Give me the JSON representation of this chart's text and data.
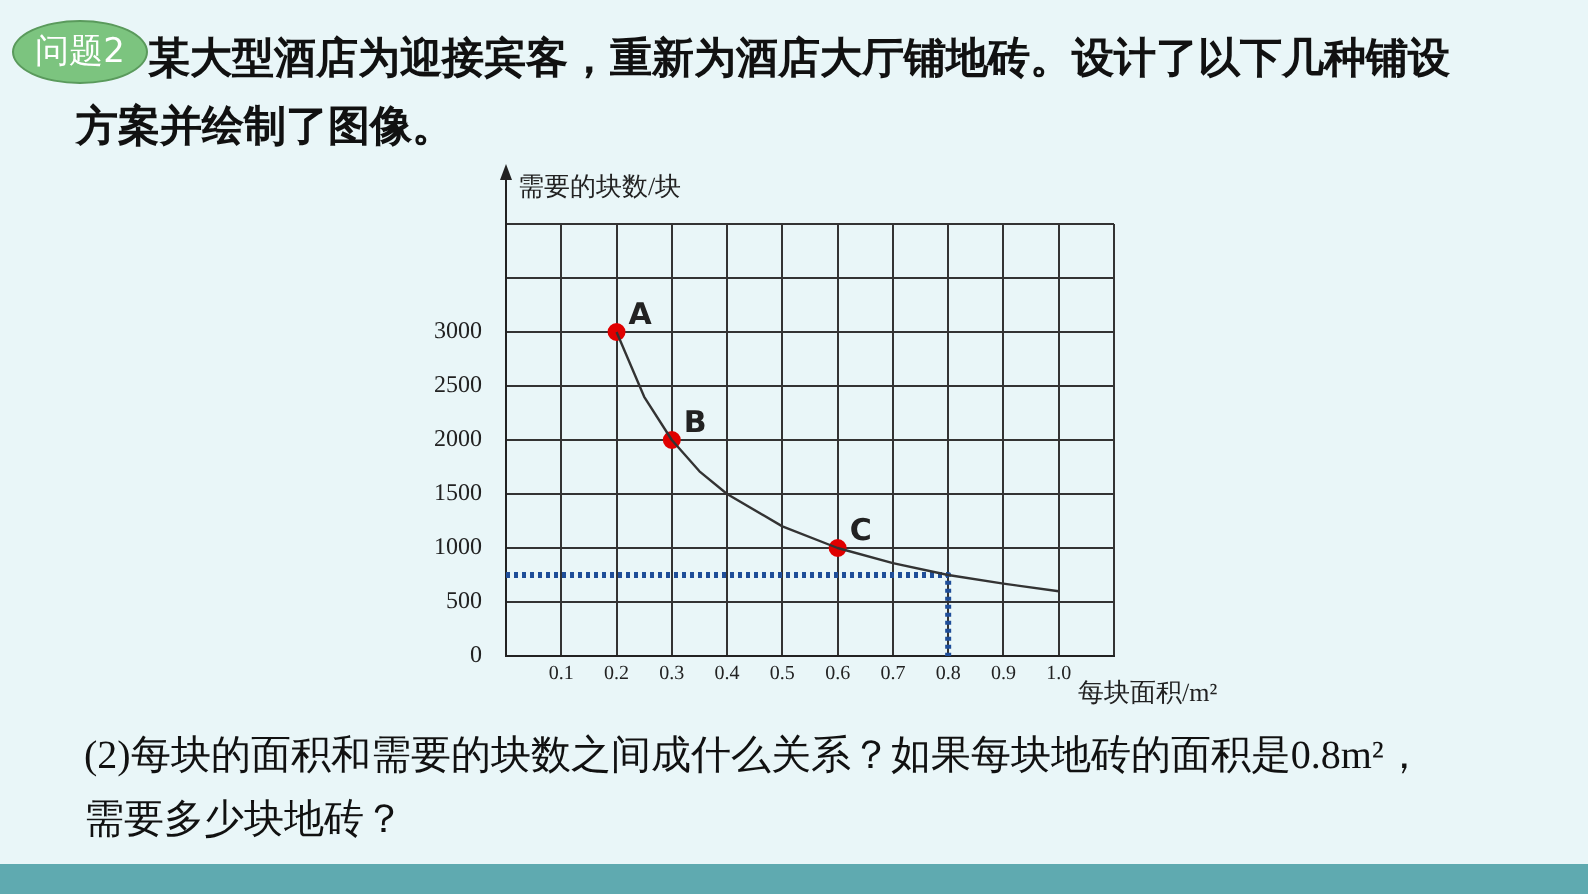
{
  "chart_data": {
    "type": "line",
    "title": "某大型酒店为迎接宾客，重新为酒店大厅铺地砖。设计了以下几种铺设方案并绘制了图像。",
    "xlabel": "每块面积/m²",
    "ylabel": "需要的块数/块",
    "annotations": [
      "问题2",
      "(2)每块的面积和需要的块数之间成什么关系？如果每块地砖的面积是0.8m²，需要多少块地砖？",
      {
        "text": "A",
        "x": 0.2,
        "y": 3000
      },
      {
        "text": "B",
        "x": 0.3,
        "y": 2000
      },
      {
        "text": "C",
        "x": 0.6,
        "y": 1000
      }
    ],
    "series": [
      {
        "type": "line",
        "color": "#333333",
        "marker": "none",
        "line_style": "solid",
        "x": [
          0.2,
          0.25,
          0.3,
          0.35,
          0.4,
          0.5,
          0.6,
          0.7,
          0.8,
          0.9,
          1.0
        ],
        "values": [
          3000,
          2400,
          2000,
          1710,
          1500,
          1200,
          1000,
          860,
          750,
          670,
          600
        ]
      },
      {
        "type": "scatter",
        "color": "#e00000",
        "marker": "circle",
        "x": [
          0.2,
          0.3,
          0.6
        ],
        "values": [
          3000,
          2000,
          1000
        ]
      },
      {
        "type": "line",
        "color": "#1f4e99",
        "marker": "none",
        "line_style": "dotted",
        "x": [
          0,
          0.8,
          0.8
        ],
        "values": [
          750,
          750,
          0
        ]
      }
    ],
    "xlim": [
      0,
      1.1
    ],
    "xticks": [
      0.1,
      0.2,
      0.3,
      0.4,
      0.5,
      0.6,
      0.7,
      0.8,
      0.9,
      {
        "value": 1.0,
        "label": "1.0"
      },
      {
        "value": 1.1,
        "label": null
      }
    ],
    "ylim": [
      0,
      4000
    ],
    "yticks": [
      0,
      500,
      1000,
      1500,
      2000,
      2500,
      3000,
      {
        "value": 3500,
        "label": null
      },
      {
        "value": 4000,
        "label": null
      }
    ],
    "grid": true,
    "legend": false
  }
}
